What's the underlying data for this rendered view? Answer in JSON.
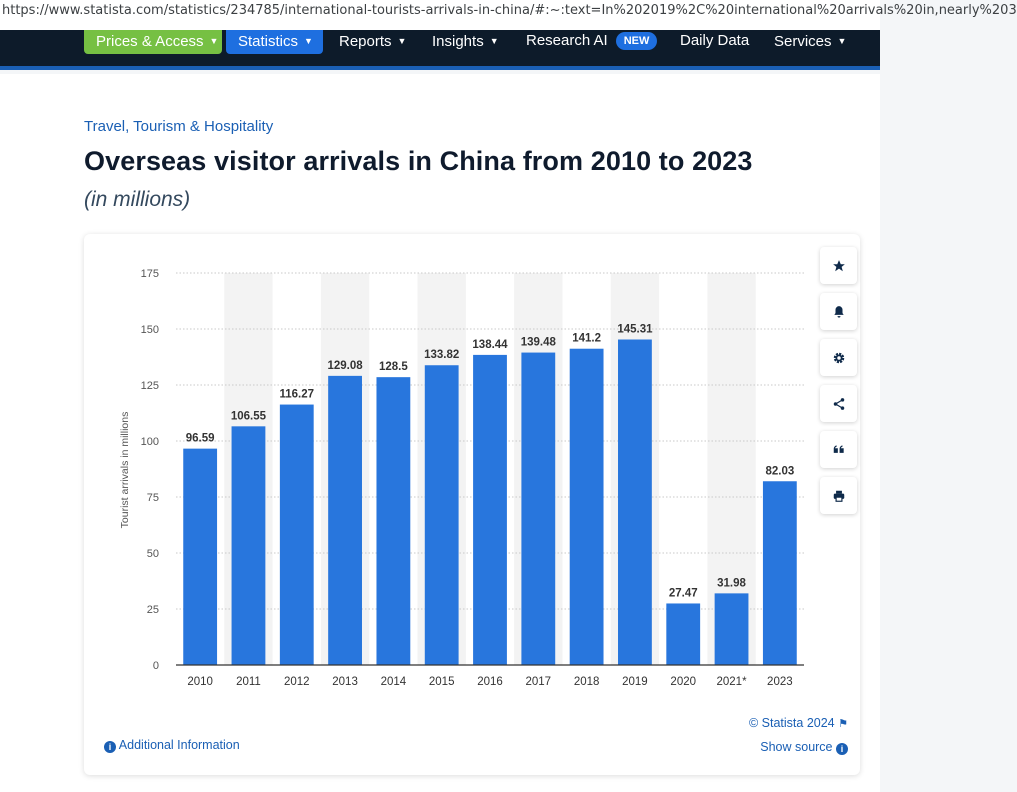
{
  "browser": {
    "url": "https://www.statista.com/statistics/234785/international-tourists-arrivals-in-china/#:~:text=In%202019%2C%20international%20arrivals%20in,nearly%203"
  },
  "nav": {
    "prices_access": "Prices & Access",
    "statistics": "Statistics",
    "reports": "Reports",
    "insights": "Insights",
    "research_ai": "Research AI",
    "new_badge": "NEW",
    "daily_data": "Daily Data",
    "services": "Services",
    "caret": "▼"
  },
  "page": {
    "category": "Travel, Tourism & Hospitality",
    "title": "Overseas visitor arrivals in China from 2010 to 2023",
    "subtitle": "(in millions)"
  },
  "footer": {
    "additional_info": "Additional Information",
    "copyright": "© Statista 2024",
    "show_source": "Show source",
    "info_glyph": "i"
  },
  "side_buttons": [
    {
      "name": "favorite",
      "icon": "star-icon"
    },
    {
      "name": "notification",
      "icon": "bell-icon"
    },
    {
      "name": "settings",
      "icon": "gear-icon"
    },
    {
      "name": "share",
      "icon": "share-icon"
    },
    {
      "name": "cite",
      "icon": "quote-icon"
    },
    {
      "name": "print",
      "icon": "print-icon"
    }
  ],
  "chart_data": {
    "type": "bar",
    "categories": [
      "2010",
      "2011",
      "2012",
      "2013",
      "2014",
      "2015",
      "2016",
      "2017",
      "2018",
      "2019",
      "2020",
      "2021*",
      "2023"
    ],
    "values": [
      96.59,
      106.55,
      116.27,
      129.08,
      128.5,
      133.82,
      138.44,
      139.48,
      141.2,
      145.31,
      27.47,
      31.98,
      82.03
    ],
    "value_labels": [
      "96.59",
      "106.55",
      "116.27",
      "129.08",
      "128.5",
      "133.82",
      "138.44",
      "139.48",
      "141.2",
      "145.31",
      "27.47",
      "31.98",
      "82.03"
    ],
    "ylabel": "Tourist arrivals in millions",
    "xlabel": "",
    "ylim": [
      0,
      175
    ],
    "yticks": [
      0,
      25,
      50,
      75,
      100,
      125,
      150,
      175
    ],
    "grid": true,
    "bar_color": "#2876dd",
    "stripe_color": "#f3f3f3"
  }
}
